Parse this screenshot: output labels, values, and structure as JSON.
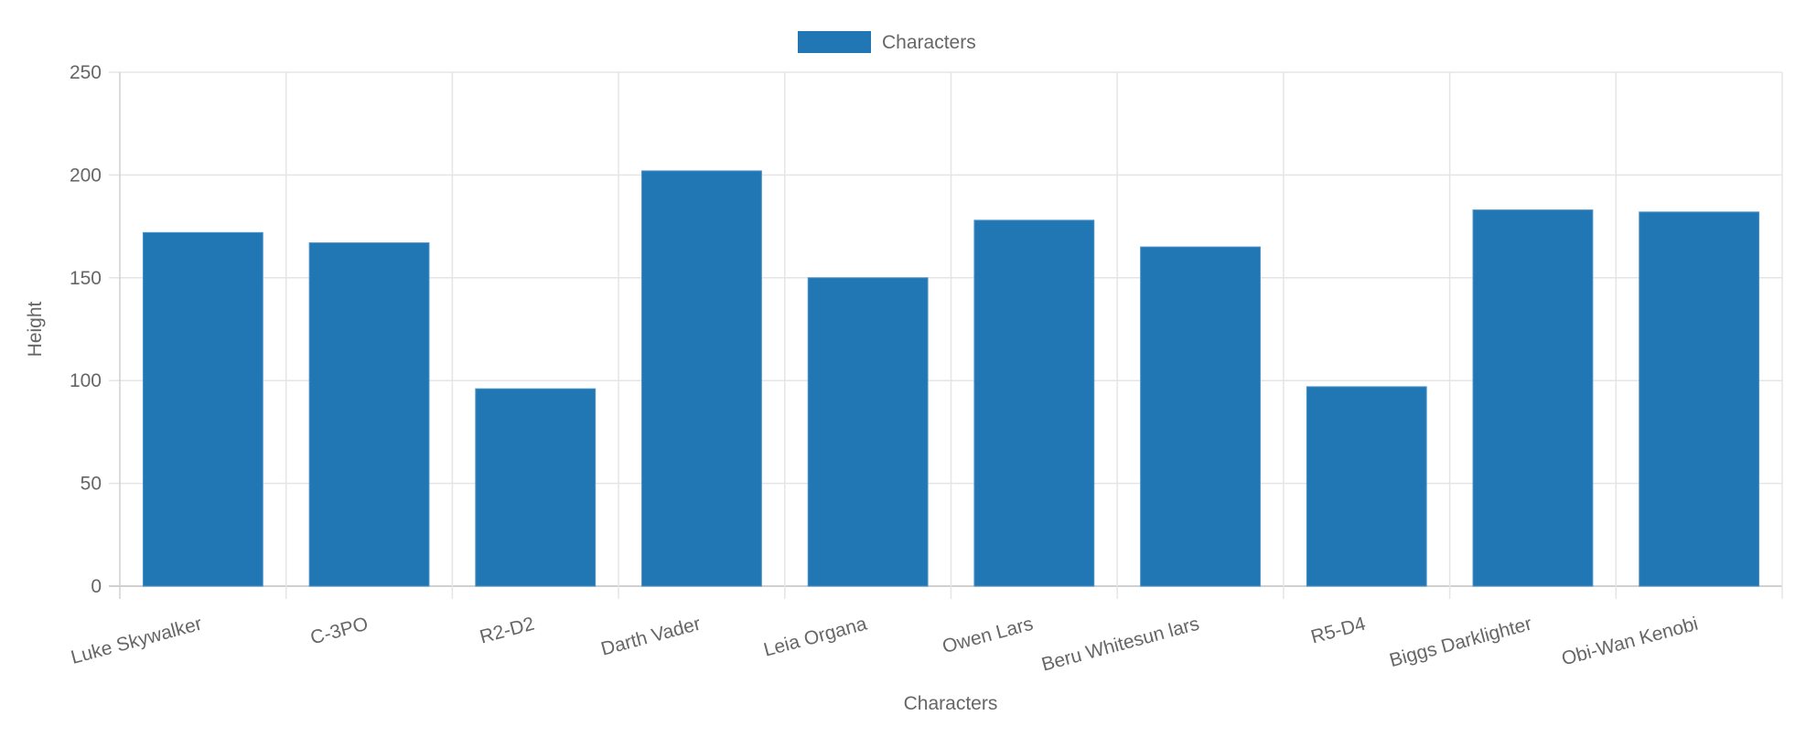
{
  "chart_data": {
    "type": "bar",
    "categories": [
      "Luke Skywalker",
      "C-3PO",
      "R2-D2",
      "Darth Vader",
      "Leia Organa",
      "Owen Lars",
      "Beru Whitesun lars",
      "R5-D4",
      "Biggs Darklighter",
      "Obi-Wan Kenobi"
    ],
    "series": [
      {
        "name": "Characters",
        "values": [
          172,
          167,
          96,
          202,
          150,
          178,
          165,
          97,
          183,
          182
        ],
        "color": "#2176b4"
      }
    ],
    "xlabel": "Characters",
    "ylabel": "Height",
    "ylim": [
      0,
      250
    ],
    "yticks": [
      0,
      50,
      100,
      150,
      200,
      250
    ],
    "grid": true,
    "legend_position": "top",
    "grid_color": "#e5e5e5",
    "text_color": "#666666"
  }
}
